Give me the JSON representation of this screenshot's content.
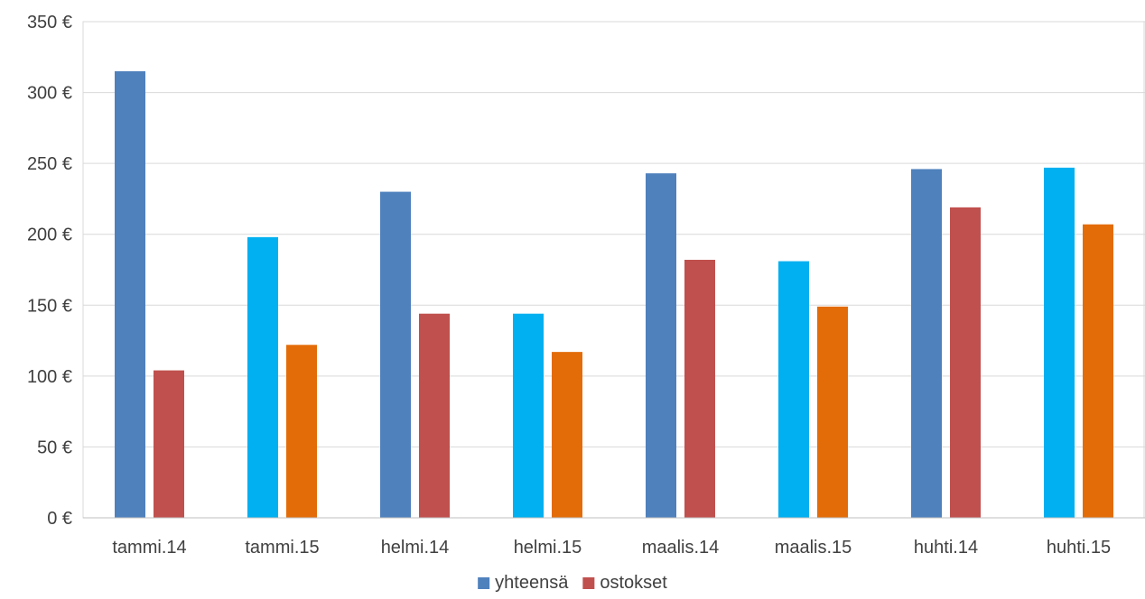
{
  "chart_data": {
    "type": "bar",
    "categories": [
      "tammi.14",
      "tammi.15",
      "helmi.14",
      "helmi.15",
      "maalis.14",
      "maalis.15",
      "huhti.14",
      "huhti.15"
    ],
    "series": [
      {
        "name": "yhteensä",
        "values": [
          315,
          198,
          230,
          144,
          243,
          181,
          246,
          247
        ],
        "colors": [
          "#4f81bd",
          "#00b0f0",
          "#4f81bd",
          "#00b0f0",
          "#4f81bd",
          "#00b0f0",
          "#4f81bd",
          "#00b0f0"
        ]
      },
      {
        "name": "ostokset",
        "values": [
          104,
          122,
          144,
          117,
          182,
          149,
          219,
          207
        ],
        "colors": [
          "#c0504d",
          "#e36c09",
          "#c0504d",
          "#e36c09",
          "#c0504d",
          "#e36c09",
          "#c0504d",
          "#e36c09"
        ]
      }
    ],
    "yticks": [
      0,
      50,
      100,
      150,
      200,
      250,
      300,
      350
    ],
    "ytick_labels": [
      "0 €",
      "50 €",
      "100 €",
      "150 €",
      "200 €",
      "250 €",
      "300 €",
      "350 €"
    ],
    "ylim": [
      0,
      350
    ],
    "grid": true,
    "legend_position": "bottom",
    "legend": [
      {
        "label": "yhteensä",
        "color": "#4f81bd"
      },
      {
        "label": "ostokset",
        "color": "#c0504d"
      }
    ]
  }
}
